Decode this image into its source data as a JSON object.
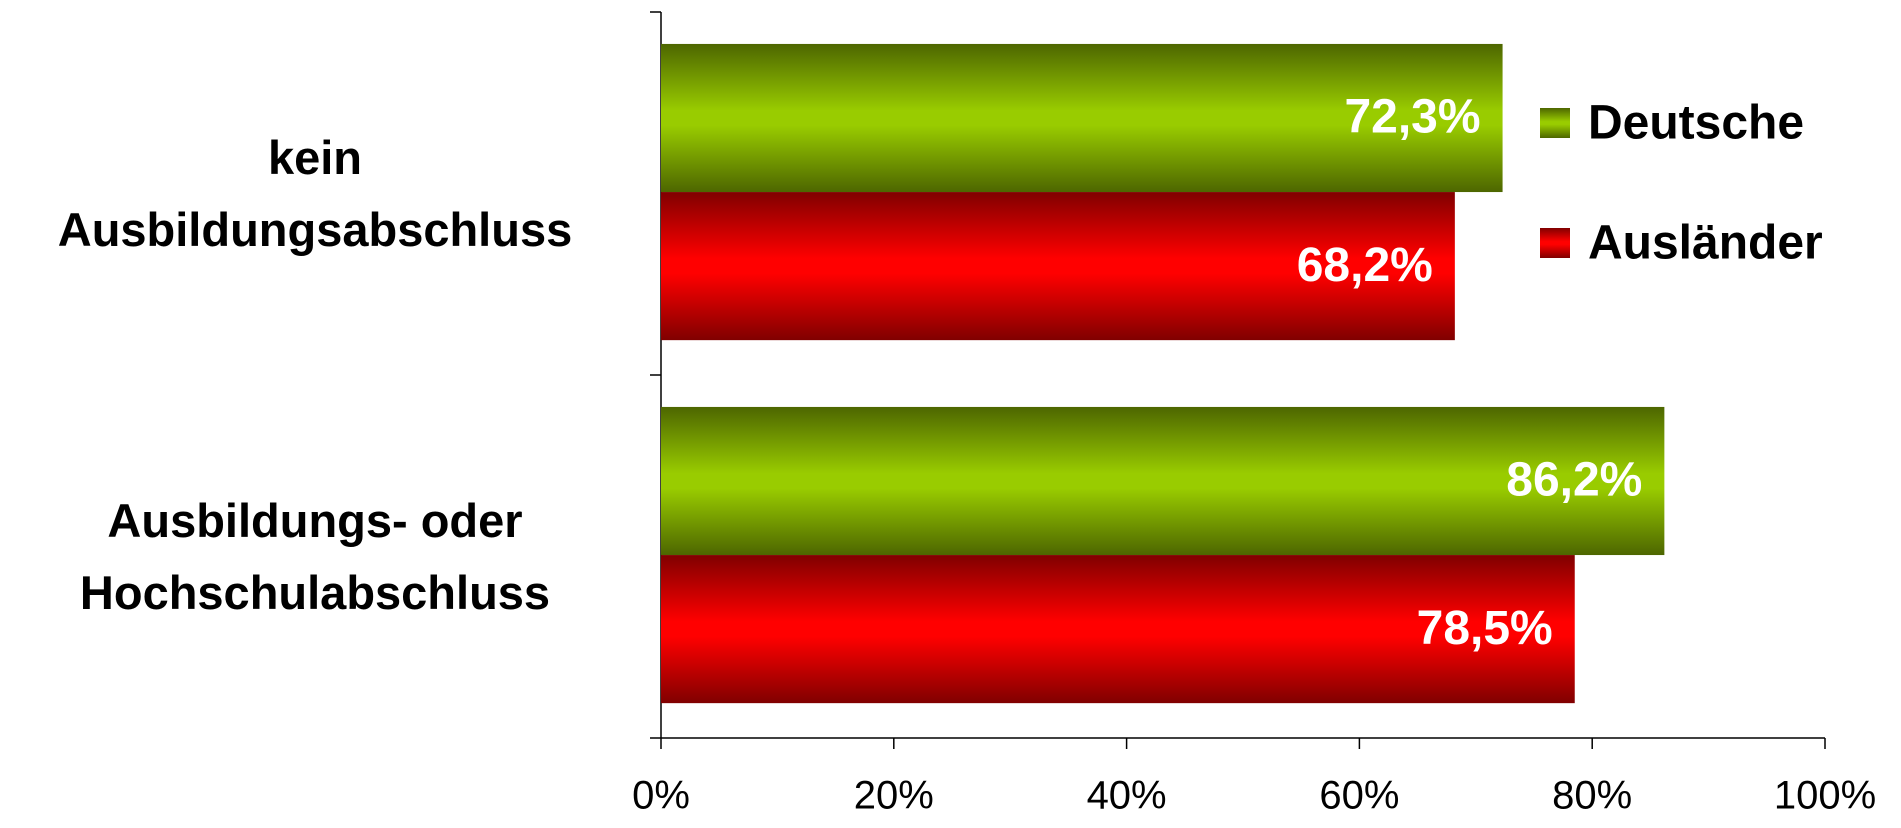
{
  "chart_data": {
    "type": "hbar",
    "categories": [
      "kein Ausbildungsabschluss",
      "Ausbildungs- oder Hochschulabschluss"
    ],
    "series": [
      {
        "name": "Deutsche",
        "color": "#99cc00",
        "values": [
          72.3,
          86.2
        ],
        "value_labels": [
          "72,3%",
          "86,2%"
        ]
      },
      {
        "name": "Ausländer",
        "color": "#ff0000",
        "values": [
          68.2,
          78.5
        ],
        "value_labels": [
          "68,2%",
          "78,5%"
        ]
      }
    ],
    "xlim": [
      0,
      100
    ],
    "xticks": [
      {
        "value": 0,
        "label": "0%"
      },
      {
        "value": 20,
        "label": "20%"
      },
      {
        "value": 40,
        "label": "40%"
      },
      {
        "value": 60,
        "label": "60%"
      },
      {
        "value": 80,
        "label": "80%"
      },
      {
        "value": 100,
        "label": "100%"
      }
    ],
    "grid": false,
    "legend": "right"
  }
}
